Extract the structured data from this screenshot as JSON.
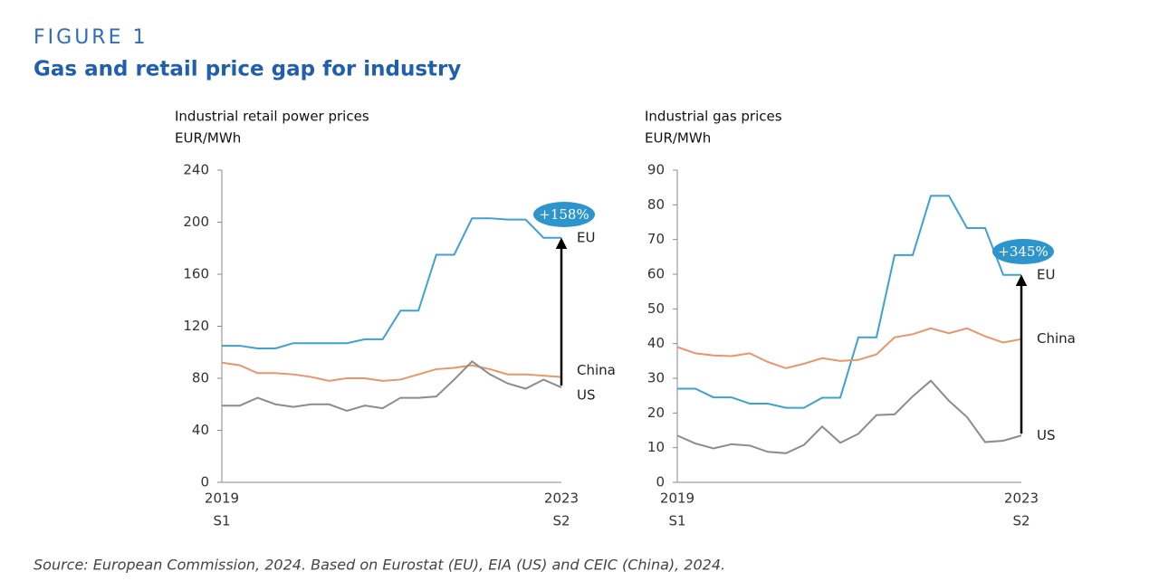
{
  "figure_label": "FIGURE 1",
  "title": "Gas and retail price gap for industry",
  "source": "Source: European Commission, 2024. Based on Eurostat (EU), EIA (US) and CEIC (China), 2024.",
  "chart_data": [
    {
      "type": "line",
      "title": "Industrial retail power prices",
      "y_label": "EUR/MWh",
      "categories": [
        [
          "2019",
          "S1"
        ],
        null,
        null,
        null,
        null,
        null,
        null,
        null,
        null,
        null,
        null,
        null,
        null,
        null,
        null,
        null,
        null,
        null,
        null,
        [
          "2023",
          "S2"
        ]
      ],
      "ylim": [
        0,
        240
      ],
      "yticks": [
        0,
        40,
        80,
        120,
        160,
        200,
        240
      ],
      "annotation": "+158%",
      "series": [
        {
          "name": "EU",
          "color": "#3ea1cf",
          "values": [
            105,
            105,
            103,
            103,
            107,
            107,
            107,
            107,
            110,
            110,
            132,
            132,
            175,
            175,
            203,
            203,
            202,
            202,
            188,
            188
          ]
        },
        {
          "name": "China",
          "color": "#e9956a",
          "values": [
            92,
            90,
            84,
            84,
            83,
            81,
            78,
            80,
            80,
            78,
            79,
            83,
            87,
            88,
            90,
            87,
            83,
            83,
            82,
            81
          ]
        },
        {
          "name": "US",
          "color": "#8c8c8c",
          "values": [
            59,
            59,
            65,
            60,
            58,
            60,
            60,
            55,
            59,
            57,
            65,
            65,
            66,
            79,
            93,
            83,
            76,
            72,
            79,
            73
          ]
        }
      ]
    },
    {
      "type": "line",
      "title": "Industrial gas prices",
      "y_label": "EUR/MWh",
      "categories": [
        [
          "2019",
          "S1"
        ],
        null,
        null,
        null,
        null,
        null,
        null,
        null,
        null,
        null,
        null,
        null,
        null,
        null,
        null,
        null,
        null,
        null,
        null,
        [
          "2023",
          "S2"
        ]
      ],
      "ylim": [
        0,
        90
      ],
      "yticks": [
        0,
        10,
        20,
        30,
        40,
        50,
        60,
        70,
        80,
        90
      ],
      "annotation": "+345%",
      "series": [
        {
          "name": "EU",
          "color": "#3ea1cf",
          "values": [
            27,
            27,
            24.5,
            24.5,
            22.7,
            22.7,
            21.5,
            21.5,
            24.4,
            24.4,
            41.8,
            41.8,
            65.5,
            65.5,
            82.6,
            82.6,
            73.3,
            73.3,
            59.8,
            59.8
          ]
        },
        {
          "name": "China",
          "color": "#e9956a",
          "values": [
            39,
            37.2,
            36.6,
            36.4,
            37.2,
            34.7,
            32.9,
            34.2,
            35.8,
            35,
            35.3,
            36.9,
            41.8,
            42.7,
            44.4,
            43,
            44.4,
            42.1,
            40.3,
            41.3
          ]
        },
        {
          "name": "US",
          "color": "#8c8c8c",
          "values": [
            13.5,
            11.2,
            9.8,
            11,
            10.6,
            8.8,
            8.4,
            10.8,
            16.1,
            11.4,
            14,
            19.4,
            19.6,
            24.8,
            29.3,
            23.5,
            18.8,
            11.6,
            12,
            13.5
          ]
        }
      ]
    }
  ]
}
